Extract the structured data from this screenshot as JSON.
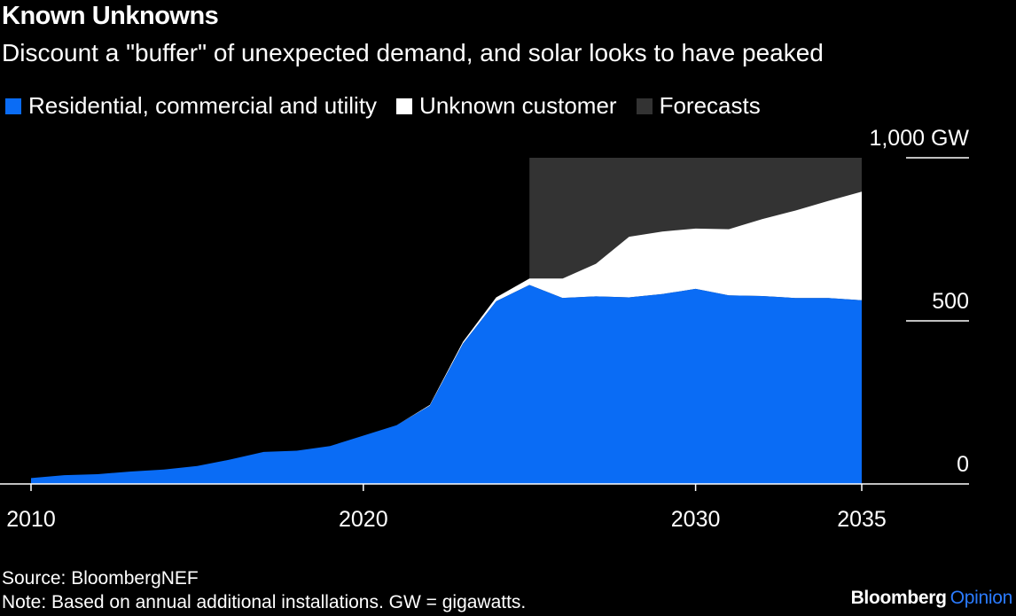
{
  "chart_data": {
    "type": "area",
    "title": "Known Unknowns",
    "subtitle": "Discount a \"buffer\" of unexpected demand, and solar looks to have peaked",
    "x": [
      2010,
      2011,
      2012,
      2013,
      2014,
      2015,
      2016,
      2017,
      2018,
      2019,
      2020,
      2021,
      2022,
      2023,
      2024,
      2025,
      2026,
      2027,
      2028,
      2029,
      2030,
      2031,
      2032,
      2033,
      2034,
      2035
    ],
    "series": [
      {
        "name": "Residential, commercial and utility",
        "color": "#0a6cf5",
        "values": [
          18,
          27,
          30,
          38,
          44,
          55,
          75,
          98,
          102,
          116,
          148,
          180,
          240,
          430,
          560,
          610,
          570,
          575,
          572,
          582,
          598,
          578,
          576,
          570,
          570,
          563
        ]
      },
      {
        "name": "Unknown customer",
        "color": "#ffffff",
        "values": [
          0,
          0,
          0,
          0,
          0,
          0,
          0,
          0,
          0,
          0,
          0,
          0,
          2,
          6,
          12,
          20,
          60,
          100,
          186,
          192,
          185,
          203,
          236,
          268,
          298,
          333
        ]
      }
    ],
    "forecast": {
      "name": "Forecasts",
      "color": "#333333",
      "start": 2025,
      "end": 2035
    },
    "xlabel": "",
    "ylabel": "",
    "ylim": [
      0,
      1000
    ],
    "xlim": [
      2010,
      2035
    ],
    "x_ticks": [
      2010,
      2020,
      2030,
      2035
    ],
    "y_ticks": [
      {
        "value": 0,
        "label": "0"
      },
      {
        "value": 500,
        "label": "500"
      },
      {
        "value": 1000,
        "label": "1,000 GW"
      }
    ],
    "legend": "top-left",
    "grid": true,
    "background": "#000000"
  },
  "footer": {
    "source": "Source: BloombergNEF",
    "note": "Note: Based on annual additional installations. GW = gigawatts.",
    "brand": "Bloomberg",
    "brand_suffix": "Opinion",
    "brand_suffix_color": "#2b7bff"
  }
}
